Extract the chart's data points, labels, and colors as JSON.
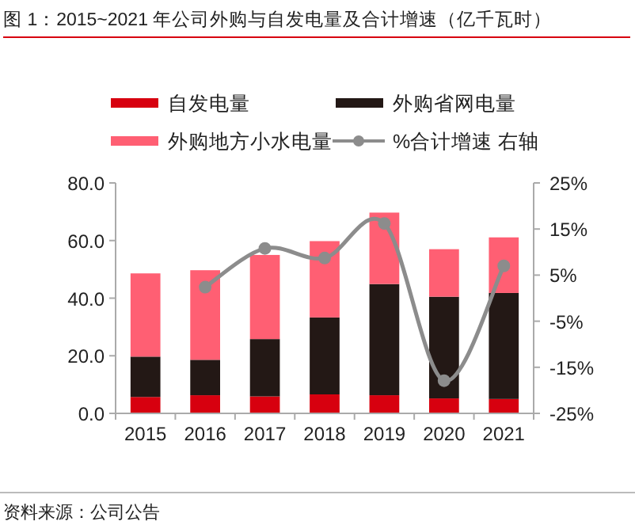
{
  "chart_data": {
    "type": "bar",
    "stacked": true,
    "title": "图 1：2015~2021 年公司外购与自发电量及合计增速（亿千瓦时）",
    "categories": [
      "2015",
      "2016",
      "2017",
      "2018",
      "2019",
      "2020",
      "2021"
    ],
    "series": [
      {
        "name": "自发电量",
        "color": "#d7000f",
        "values": [
          5.7,
          6.3,
          5.9,
          6.6,
          6.3,
          5.2,
          5.0
        ]
      },
      {
        "name": "外购省网电量",
        "color": "#231815",
        "values": [
          14.0,
          12.3,
          19.9,
          26.7,
          38.6,
          35.3,
          36.8
        ]
      },
      {
        "name": "外购地方小水电量",
        "color": "#ff5f73",
        "values": [
          28.9,
          31.1,
          29.2,
          26.5,
          24.8,
          16.5,
          19.3
        ]
      },
      {
        "name": "%合计增速 右轴",
        "color": "#8c8c8c",
        "type": "line",
        "axis": "y2",
        "marker": "circle",
        "values": [
          null,
          2.4,
          10.8,
          8.7,
          16.2,
          -17.9,
          7.0
        ]
      }
    ],
    "ylim": [
      0,
      80
    ],
    "yticks": [
      {
        "value": 0,
        "label": "0.0"
      },
      {
        "value": 20,
        "label": "20.0"
      },
      {
        "value": 40,
        "label": "40.0"
      },
      {
        "value": 60,
        "label": "60.0"
      },
      {
        "value": 80,
        "label": "80.0"
      }
    ],
    "y2lim": [
      -25,
      25
    ],
    "y2ticks": [
      {
        "value": -25,
        "label": "-25%"
      },
      {
        "value": -15,
        "label": "-15%"
      },
      {
        "value": -5,
        "label": "-5%"
      },
      {
        "value": 5,
        "label": "5%"
      },
      {
        "value": 15,
        "label": "15%"
      },
      {
        "value": 25,
        "label": "25%"
      }
    ],
    "legend": "top",
    "annotations": [
      "资料来源：公司公告"
    ]
  }
}
